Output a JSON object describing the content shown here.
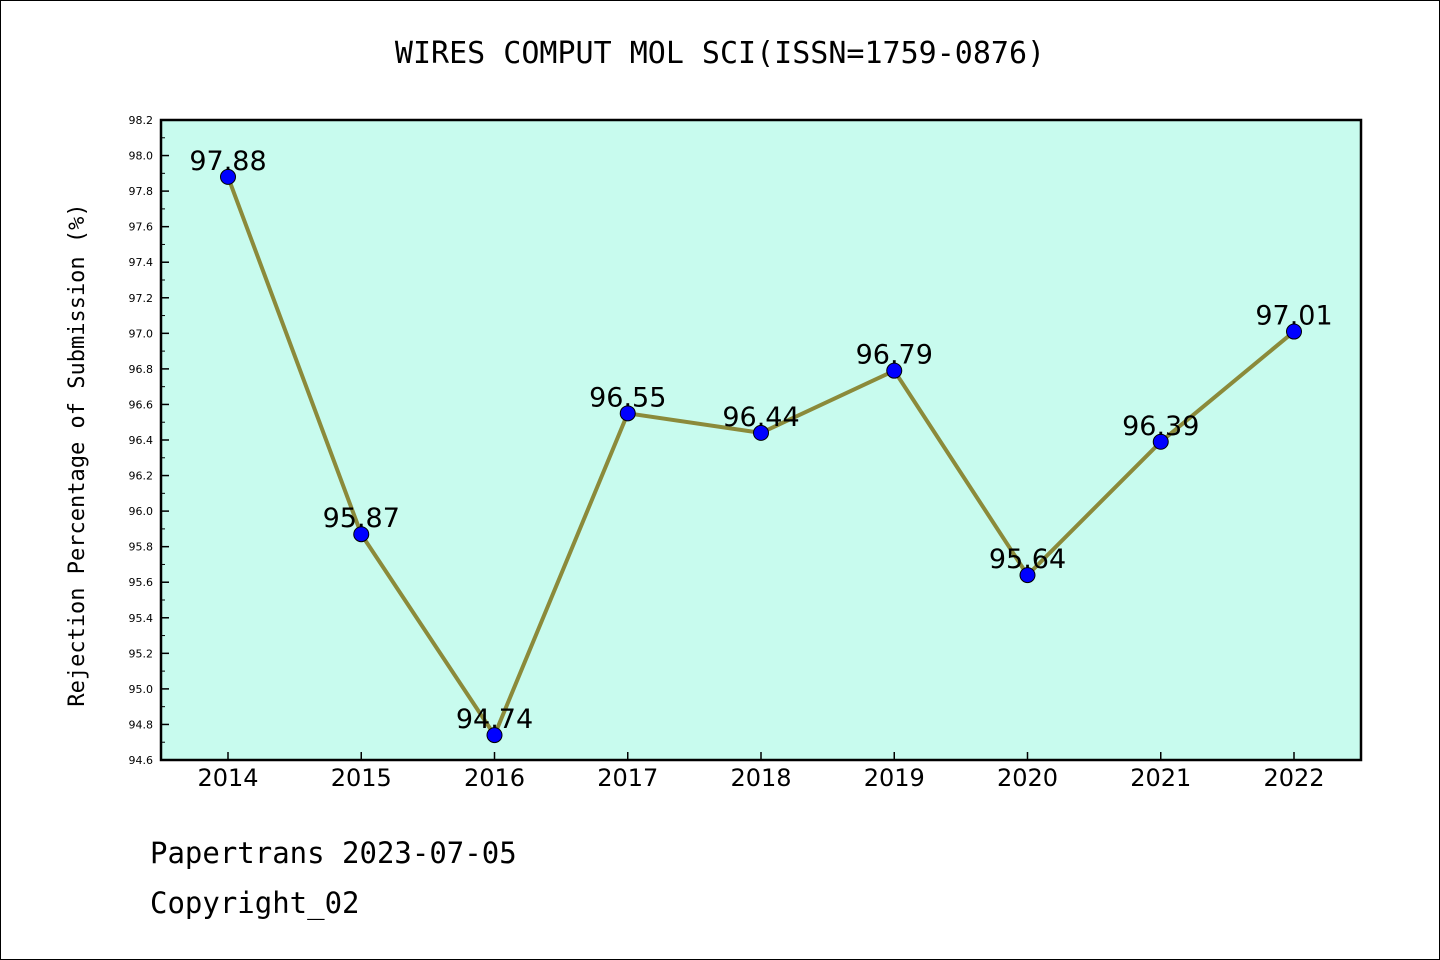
{
  "chart_data": {
    "type": "line",
    "title": "WIRES COMPUT MOL SCI(ISSN=1759-0876)",
    "xlabel": "",
    "ylabel": "Rejection Percentage of Submission (%)",
    "categories": [
      "2014",
      "2015",
      "2016",
      "2017",
      "2018",
      "2019",
      "2020",
      "2021",
      "2022"
    ],
    "series": [
      {
        "values": [
          97.88,
          95.87,
          94.74,
          96.55,
          96.44,
          96.79,
          95.64,
          96.39,
          97.01
        ]
      }
    ],
    "data_labels": [
      "97.88",
      "95.87",
      "94.74",
      "96.55",
      "96.44",
      "96.79",
      "95.64",
      "96.39",
      "97.01"
    ],
    "ylim": [
      94.6,
      98.2
    ],
    "yticks": [
      "94.6",
      "94.8",
      "95.0",
      "95.2",
      "95.4",
      "95.6",
      "95.8",
      "96.0",
      "96.2",
      "96.4",
      "96.6",
      "96.8",
      "97.0",
      "97.2",
      "97.4",
      "97.6",
      "97.8",
      "98.0",
      "98.2"
    ],
    "grid": false,
    "colors": {
      "plot_background": "#c8fbee",
      "line": "#8b8a3a",
      "marker": "#0000ff"
    }
  },
  "footer": {
    "line1": "Papertrans 2023-07-05",
    "line2": "Copyright_02"
  }
}
